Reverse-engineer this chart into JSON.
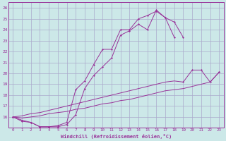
{
  "xlabel": "Windchill (Refroidissement éolien,°C)",
  "background_color": "#cce8e8",
  "grid_color": "#aaaacc",
  "line_color": "#993399",
  "xlim": [
    -0.5,
    23.5
  ],
  "ylim": [
    15.0,
    26.5
  ],
  "xticks": [
    0,
    1,
    2,
    3,
    4,
    5,
    6,
    7,
    8,
    9,
    10,
    11,
    12,
    13,
    14,
    15,
    16,
    17,
    18,
    19,
    20,
    21,
    22,
    23
  ],
  "yticks": [
    16,
    17,
    18,
    19,
    20,
    21,
    22,
    23,
    24,
    25,
    26
  ],
  "ytick_labels": [
    "16",
    "17",
    "18",
    "19",
    "20",
    "21",
    "22",
    "23",
    "24",
    "25",
    "26"
  ],
  "line1": {
    "x": [
      0,
      1,
      2,
      3,
      4,
      5,
      6,
      7,
      8,
      9,
      10,
      11,
      12,
      13,
      14,
      15,
      16,
      17,
      18,
      19
    ],
    "y": [
      16.0,
      15.7,
      15.5,
      15.1,
      15.1,
      15.2,
      15.5,
      18.5,
      19.3,
      20.8,
      22.2,
      22.2,
      24.0,
      24.0,
      25.0,
      25.3,
      25.7,
      25.1,
      24.7,
      23.3
    ]
  },
  "line2": {
    "x": [
      0,
      1,
      2,
      3,
      4,
      5,
      6,
      7,
      8,
      9,
      10,
      11,
      12,
      13,
      14,
      15,
      16,
      17,
      18
    ],
    "y": [
      16.0,
      15.6,
      15.5,
      15.1,
      15.1,
      15.1,
      15.3,
      16.2,
      18.6,
      19.8,
      20.6,
      21.4,
      23.5,
      23.9,
      24.5,
      24.0,
      25.8,
      25.1,
      23.3
    ]
  },
  "line3": {
    "x": [
      0,
      19,
      20,
      21,
      22,
      23
    ],
    "y": [
      16.0,
      19.2,
      20.3,
      20.3,
      19.2,
      20.1
    ]
  },
  "line4": {
    "x": [
      0,
      23
    ],
    "y": [
      16.0,
      20.1
    ]
  },
  "line3_full": {
    "x": [
      0,
      1,
      2,
      3,
      4,
      5,
      6,
      7,
      8,
      9,
      10,
      11,
      12,
      13,
      14,
      15,
      16,
      17,
      18,
      19,
      20,
      21,
      22,
      23
    ],
    "y": [
      16.0,
      16.1,
      16.3,
      16.4,
      16.6,
      16.8,
      17.0,
      17.2,
      17.4,
      17.6,
      17.8,
      18.0,
      18.2,
      18.4,
      18.6,
      18.8,
      19.0,
      19.2,
      19.3,
      19.2,
      20.3,
      20.3,
      19.2,
      20.1
    ]
  },
  "line4_full": {
    "x": [
      0,
      1,
      2,
      3,
      4,
      5,
      6,
      7,
      8,
      9,
      10,
      11,
      12,
      13,
      14,
      15,
      16,
      17,
      18,
      19,
      20,
      21,
      22,
      23
    ],
    "y": [
      16.0,
      15.9,
      16.0,
      16.1,
      16.3,
      16.4,
      16.5,
      16.7,
      16.8,
      17.0,
      17.2,
      17.3,
      17.5,
      17.6,
      17.8,
      18.0,
      18.2,
      18.4,
      18.5,
      18.6,
      18.8,
      19.0,
      19.2,
      20.1
    ]
  }
}
